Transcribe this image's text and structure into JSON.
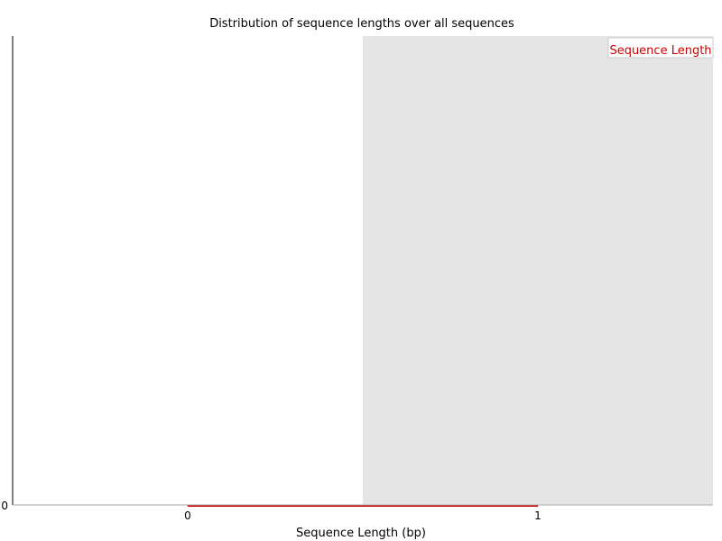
{
  "chart_data": {
    "type": "line",
    "title": "Distribution of sequence lengths over all sequences",
    "xlabel": "Sequence Length (bp)",
    "ylabel": "",
    "x_ticks": [
      "0",
      "1"
    ],
    "y_ticks": [
      "0"
    ],
    "xlim": [
      -0.5,
      1.5
    ],
    "ylim": [
      0,
      1
    ],
    "shaded_region": {
      "x_from": 0.5,
      "x_to": 1.5,
      "color": "#e5e5e5"
    },
    "legend": {
      "position": "top-right",
      "entries": [
        "Sequence Length"
      ]
    },
    "series": [
      {
        "name": "Sequence Length",
        "color": "#cc0000",
        "x": [
          0,
          1
        ],
        "y": [
          0,
          0
        ]
      }
    ]
  }
}
